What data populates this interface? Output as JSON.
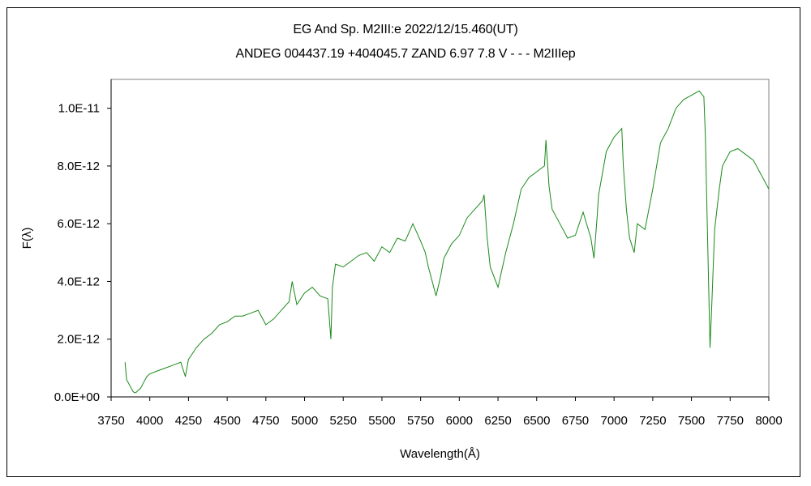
{
  "chart_data": {
    "type": "line",
    "title": "EG And    Sp. M2III:e    2022/12/15.460(UT)",
    "subtitle": "ANDEG 004437.19 +404045.7 ZAND 6.97 7.8 V - - - M2IIIep",
    "xlabel": "Wavelength(Å)",
    "ylabel": "F(λ)",
    "xlim": [
      3750,
      8000
    ],
    "ylim": [
      0,
      1.1e-11
    ],
    "x_ticks": [
      3750,
      4000,
      4250,
      4500,
      4750,
      5000,
      5250,
      5500,
      5750,
      6000,
      6250,
      6500,
      6750,
      7000,
      7250,
      7500,
      7750,
      8000
    ],
    "x_tick_labels": [
      "3750",
      "4000",
      "4250",
      "4500",
      "4750",
      "5000",
      "5250",
      "5500",
      "5750",
      "6000",
      "6250",
      "6500",
      "6750",
      "7000",
      "7250",
      "7500",
      "7750",
      "8000"
    ],
    "y_ticks": [
      0,
      2e-12,
      4e-12,
      6e-12,
      8e-12,
      1e-11
    ],
    "y_tick_labels": [
      "0.0E+00",
      "2.0E-12",
      "4.0E-12",
      "6.0E-12",
      "8.0E-12",
      "1.0E-11"
    ],
    "grid": false,
    "legend": "none",
    "line_color": "#1a8a1a",
    "series": [
      {
        "x": [
          3840,
          3850,
          3860,
          3870,
          3880,
          3890,
          3900,
          3910,
          3920,
          3940,
          3960,
          3980,
          4000,
          4050,
          4100,
          4150,
          4200,
          4230,
          4250,
          4300,
          4350,
          4400,
          4450,
          4500,
          4550,
          4600,
          4650,
          4700,
          4750,
          4800,
          4850,
          4900,
          4920,
          4950,
          5000,
          5050,
          5100,
          5150,
          5170,
          5180,
          5200,
          5250,
          5300,
          5350,
          5400,
          5450,
          5500,
          5550,
          5600,
          5650,
          5700,
          5750,
          5780,
          5800,
          5850,
          5880,
          5900,
          5950,
          6000,
          6050,
          6100,
          6150,
          6160,
          6180,
          6200,
          6250,
          6300,
          6350,
          6400,
          6450,
          6500,
          6550,
          6560,
          6580,
          6600,
          6650,
          6700,
          6750,
          6800,
          6850,
          6870,
          6890,
          6900,
          6950,
          7000,
          7050,
          7060,
          7080,
          7100,
          7130,
          7150,
          7200,
          7250,
          7300,
          7350,
          7400,
          7450,
          7500,
          7550,
          7580,
          7590,
          7600,
          7620,
          7630,
          7650,
          7680,
          7700,
          7750,
          7800,
          7850,
          7900,
          7950,
          8000
        ],
        "y": [
          1.2e-12,
          6e-13,
          5e-13,
          4e-13,
          3e-13,
          2e-13,
          1.5e-13,
          1.5e-13,
          2e-13,
          3e-13,
          5e-13,
          7e-13,
          8e-13,
          9e-13,
          1e-12,
          1.1e-12,
          1.2e-12,
          7e-13,
          1.3e-12,
          1.7e-12,
          2e-12,
          2.2e-12,
          2.5e-12,
          2.6e-12,
          2.8e-12,
          2.8e-12,
          2.9e-12,
          3e-12,
          2.5e-12,
          2.7e-12,
          3e-12,
          3.3e-12,
          4e-12,
          3.2e-12,
          3.6e-12,
          3.8e-12,
          3.5e-12,
          3.4e-12,
          2e-12,
          3.8e-12,
          4.6e-12,
          4.5e-12,
          4.7e-12,
          4.9e-12,
          5e-12,
          4.7e-12,
          5.2e-12,
          5e-12,
          5.5e-12,
          5.4e-12,
          6e-12,
          5.4e-12,
          5e-12,
          4.5e-12,
          3.5e-12,
          4.2e-12,
          4.8e-12,
          5.3e-12,
          5.6e-12,
          6.2e-12,
          6.5e-12,
          6.8e-12,
          7e-12,
          5.5e-12,
          4.5e-12,
          3.8e-12,
          5e-12,
          6e-12,
          7.2e-12,
          7.6e-12,
          7.8e-12,
          8e-12,
          8.9e-12,
          7.3e-12,
          6.5e-12,
          6e-12,
          5.5e-12,
          5.6e-12,
          6.4e-12,
          5.5e-12,
          4.8e-12,
          6.2e-12,
          7e-12,
          8.5e-12,
          9e-12,
          9.3e-12,
          8e-12,
          6.5e-12,
          5.5e-12,
          5e-12,
          6e-12,
          5.8e-12,
          7.2e-12,
          8.8e-12,
          9.3e-12,
          1e-11,
          1.03e-11,
          1.045e-11,
          1.06e-11,
          1.04e-11,
          9e-12,
          6.5e-12,
          1.7e-12,
          3e-12,
          5.8e-12,
          7.2e-12,
          8e-12,
          8.5e-12,
          8.6e-12,
          8.4e-12,
          8.2e-12,
          7.7e-12,
          7.2e-12
        ]
      }
    ]
  }
}
